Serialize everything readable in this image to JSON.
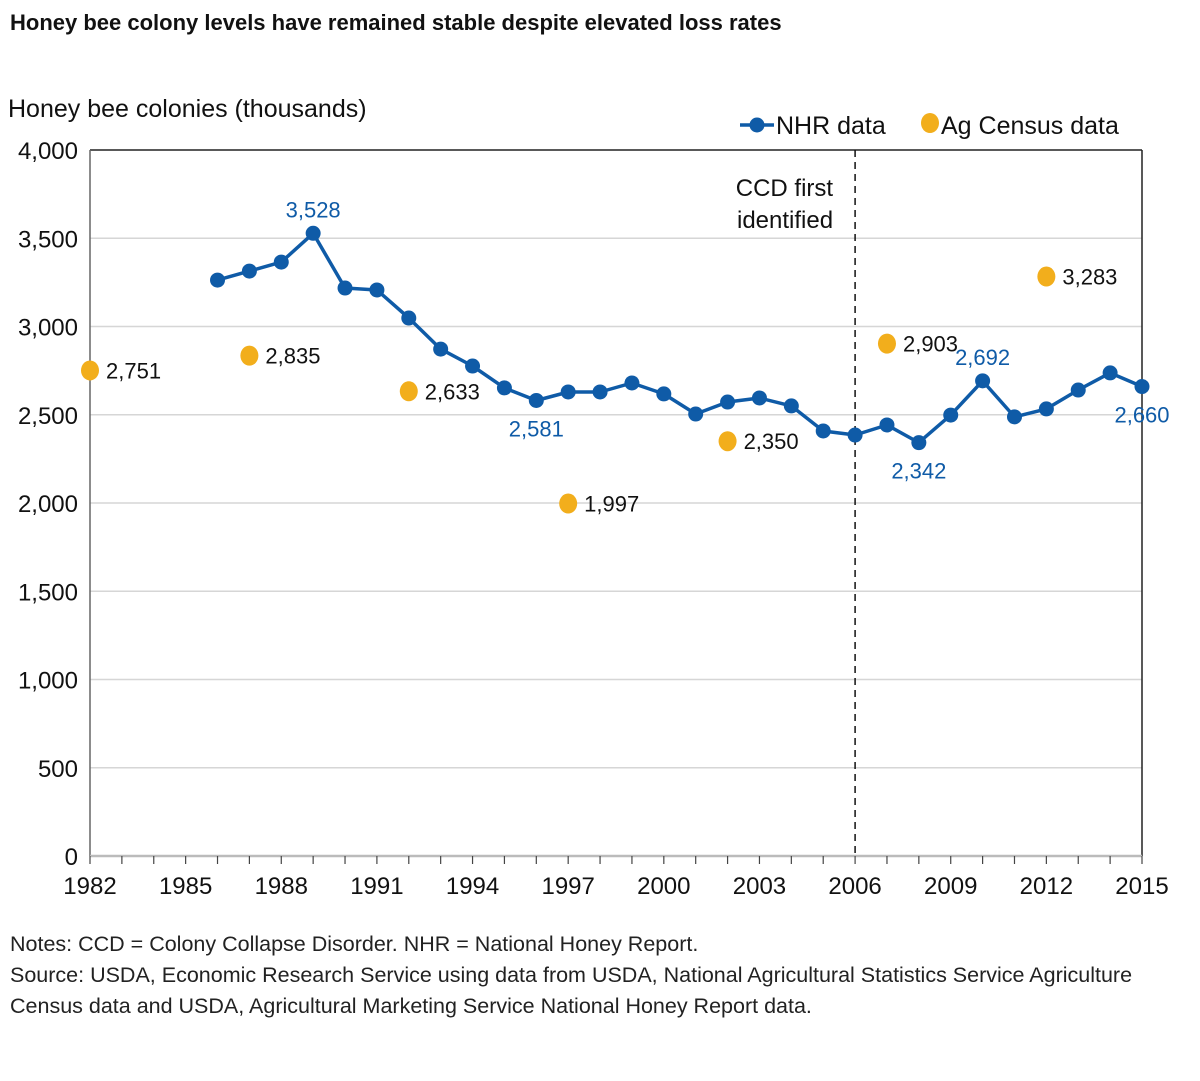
{
  "chart_data": {
    "type": "line",
    "title": "Honey bee colony levels have remained stable despite elevated loss rates",
    "ylabel": "Honey bee colonies (thousands)",
    "xlabel": "",
    "ylim": [
      0,
      4000
    ],
    "xlim": [
      1982,
      2015
    ],
    "grid": true,
    "legend_position": "top-right",
    "y_ticks": [
      {
        "value": 0,
        "label": "0"
      },
      {
        "value": 500,
        "label": "500"
      },
      {
        "value": 1000,
        "label": "1,000"
      },
      {
        "value": 1500,
        "label": "1,500"
      },
      {
        "value": 2000,
        "label": "2,000"
      },
      {
        "value": 2500,
        "label": "2,500"
      },
      {
        "value": 3000,
        "label": "3,000"
      },
      {
        "value": 3500,
        "label": "3,500"
      },
      {
        "value": 4000,
        "label": "4,000"
      }
    ],
    "x_ticks": [
      {
        "value": 1982,
        "label": "1982"
      },
      {
        "value": 1985,
        "label": "1985"
      },
      {
        "value": 1988,
        "label": "1988"
      },
      {
        "value": 1991,
        "label": "1991"
      },
      {
        "value": 1994,
        "label": "1994"
      },
      {
        "value": 1997,
        "label": "1997"
      },
      {
        "value": 2000,
        "label": "2000"
      },
      {
        "value": 2003,
        "label": "2003"
      },
      {
        "value": 2006,
        "label": "2006"
      },
      {
        "value": 2009,
        "label": "2009"
      },
      {
        "value": 2012,
        "label": "2012"
      },
      {
        "value": 2015,
        "label": "2015"
      }
    ],
    "series": [
      {
        "name": "NHR data",
        "type": "line",
        "color": "#0F5BA7",
        "x": [
          1986,
          1987,
          1988,
          1989,
          1990,
          1991,
          1992,
          1993,
          1994,
          1995,
          1996,
          1997,
          1998,
          1999,
          2000,
          2001,
          2002,
          2003,
          2004,
          2005,
          2006,
          2007,
          2008,
          2009,
          2010,
          2011,
          2012,
          2013,
          2014,
          2015
        ],
        "values": [
          3263,
          3314,
          3365,
          3528,
          3218,
          3207,
          3048,
          2872,
          2776,
          2652,
          2581,
          2629,
          2629,
          2680,
          2618,
          2504,
          2572,
          2595,
          2550,
          2408,
          2385,
          2442,
          2342,
          2498,
          2692,
          2488,
          2533,
          2640,
          2737,
          2660
        ],
        "labels": [
          {
            "x": 1989,
            "text": "3,528",
            "position": "above"
          },
          {
            "x": 1996,
            "text": "2,581",
            "position": "below"
          },
          {
            "x": 2008,
            "text": "2,342",
            "position": "below"
          },
          {
            "x": 2010,
            "text": "2,692",
            "position": "above"
          },
          {
            "x": 2015,
            "text": "2,660",
            "position": "below"
          }
        ]
      },
      {
        "name": "Ag Census data",
        "type": "scatter",
        "color": "#F2AE1C",
        "x": [
          1982,
          1987,
          1992,
          1997,
          2002,
          2007,
          2012
        ],
        "values": [
          2751,
          2835,
          2633,
          1997,
          2350,
          2903,
          3283
        ],
        "labels": [
          "2,751",
          "2,835",
          "2,633",
          "1,997",
          "2,350",
          "2,903",
          "3,283"
        ]
      }
    ],
    "annotations": [
      {
        "type": "vline",
        "x": 2006,
        "style": "dashed",
        "text_lines": [
          "CCD first",
          "identified"
        ]
      }
    ]
  },
  "notes": {
    "line1": "Notes: CCD = Colony Collapse Disorder. NHR = National Honey Report.",
    "line2": "Source: USDA, Economic Research Service using data from USDA, National Agricultural Statistics Service Agriculture Census data and USDA, Agricultural Marketing Service National Honey Report data."
  }
}
